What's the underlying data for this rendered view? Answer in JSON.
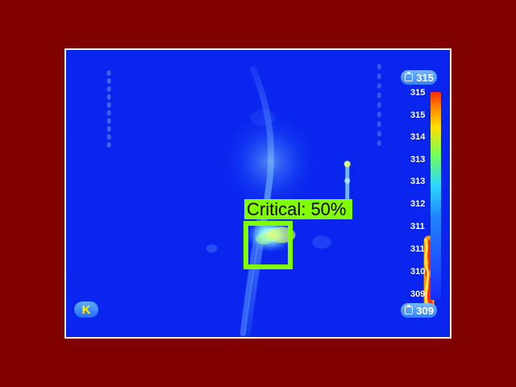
{
  "overlay": {
    "critical_label": "Critical: 50%"
  },
  "status": {
    "top_value": "315",
    "bottom_value": "309",
    "k_label": "K"
  },
  "scale": {
    "labels": [
      "315",
      "315",
      "314",
      "313",
      "313",
      "312",
      "311",
      "311",
      "310",
      "309"
    ]
  },
  "icons": {
    "battery": "battery-icon",
    "k": "k-icon"
  },
  "colors": {
    "background": "#800000",
    "detection": "#7fff00"
  }
}
